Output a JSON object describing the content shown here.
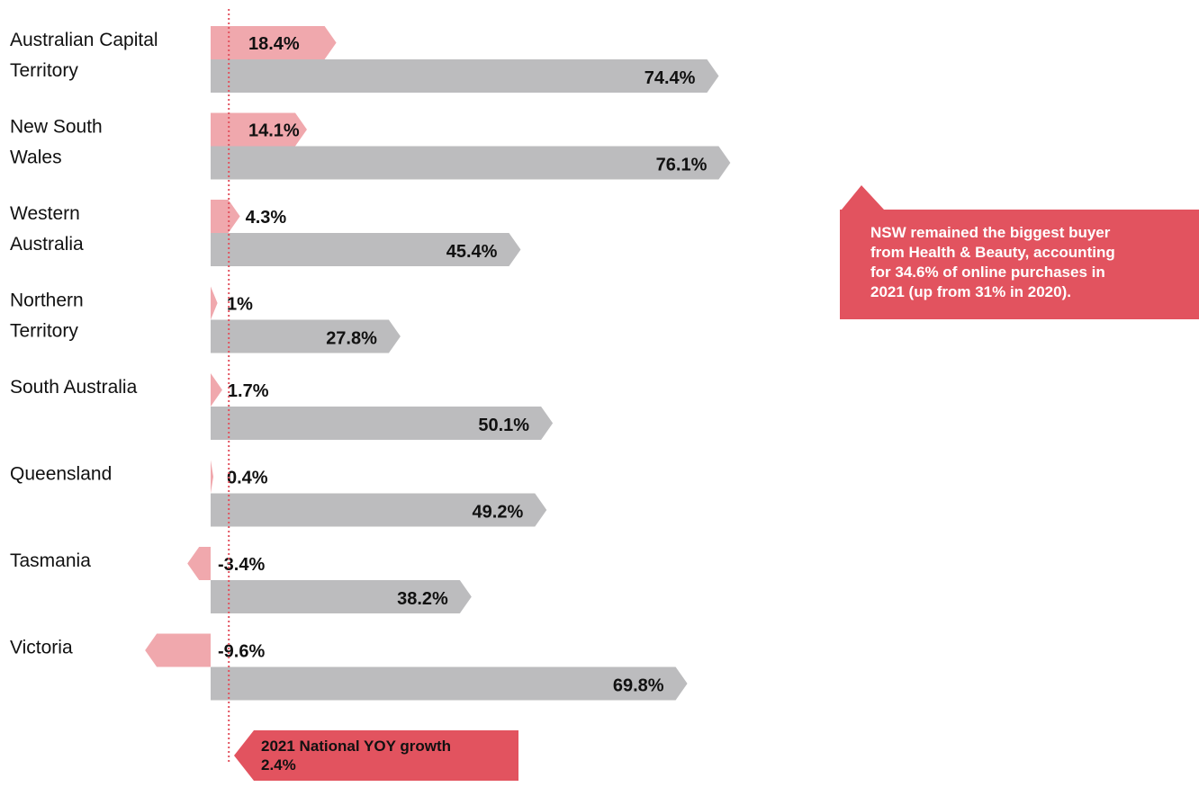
{
  "chart_data": {
    "type": "bar",
    "categories": [
      [
        "Australian Capital",
        "Territory"
      ],
      [
        "New South",
        "Wales"
      ],
      [
        "Western",
        "Australia"
      ],
      [
        "Northern",
        "Territory"
      ],
      [
        "South Australia"
      ],
      [
        "Queensland"
      ],
      [
        "Tasmania"
      ],
      [
        "Victoria"
      ]
    ],
    "series": [
      {
        "values": [
          18.4,
          14.1,
          4.3,
          1,
          1.7,
          0.4,
          -3.4,
          -9.6
        ],
        "labels": [
          "18.4%",
          "14.1%",
          "4.3%",
          "1%",
          "1.7%",
          "0.4%",
          "-3.4%",
          "-9.6%"
        ],
        "color": "#f0a8ad"
      },
      {
        "values": [
          74.4,
          76.1,
          45.4,
          27.8,
          50.1,
          49.2,
          38.2,
          69.8
        ],
        "labels": [
          "74.4%",
          "76.1%",
          "45.4%",
          "27.8%",
          "50.1%",
          "49.2%",
          "38.2%",
          "69.8%"
        ],
        "color": "#bcbcbe"
      }
    ],
    "reference_line": {
      "value": 2.4,
      "color": "#e2535f",
      "label": [
        "2021 National YOY growth",
        "2.4%"
      ]
    },
    "annotation": {
      "category_index": 1,
      "series_index": 1,
      "color": "#e2535f",
      "text": [
        "NSW remained the biggest buyer",
        "from Health & Beauty, accounting",
        "for 34.6% of online purchases in",
        "2021 (up from 31% in 2020)."
      ]
    },
    "title": "",
    "xlabel": "",
    "ylabel": ""
  }
}
